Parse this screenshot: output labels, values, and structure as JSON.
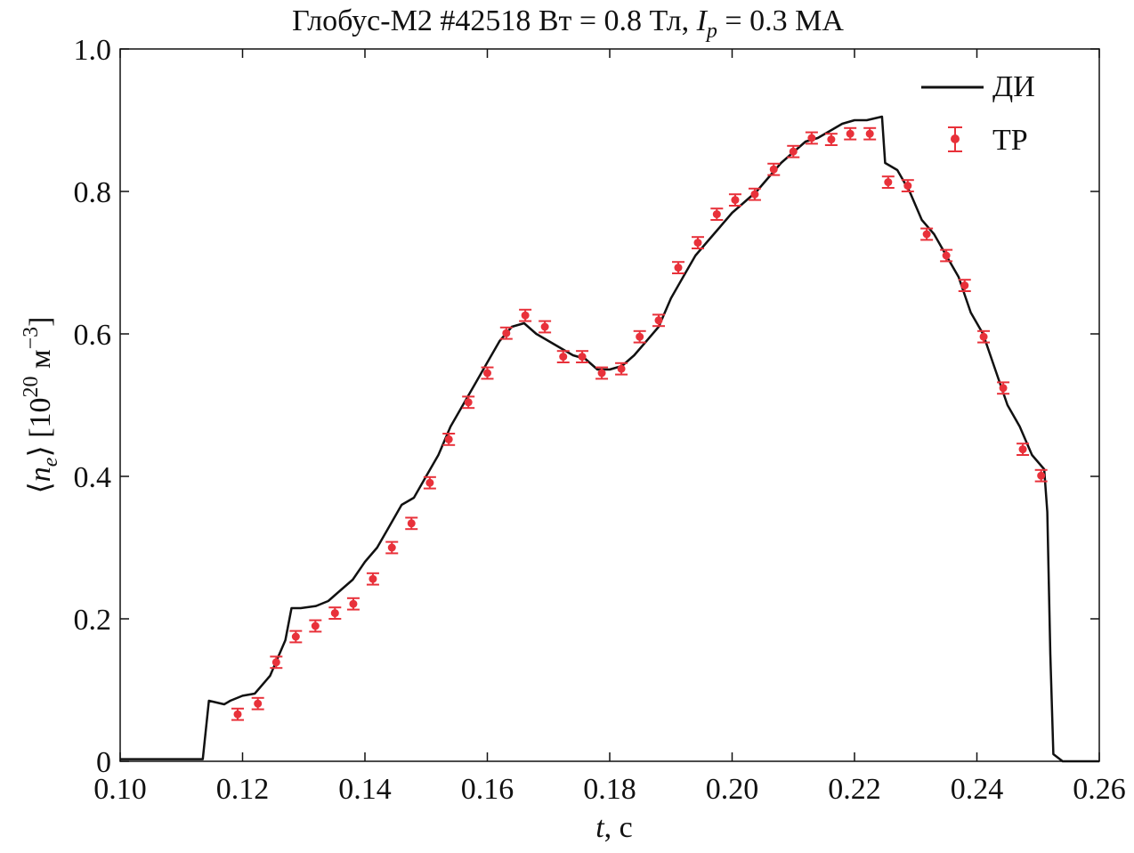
{
  "chart_data": {
    "type": "line",
    "title": {
      "pre": "Глобус-М2 #42518 Bт = 0.8 Тл, ",
      "ip": "I",
      "ip_sub": "p",
      "post": " = 0.3 МА"
    },
    "xlabel": {
      "var": "t",
      "unit": ", с"
    },
    "ylabel": {
      "pre": "⟨",
      "var": "n",
      "sub": "e",
      "post": "⟩ [10",
      "exp": "20",
      "unit": " м",
      "unit_exp": "−3",
      "close": "]"
    },
    "xlim": [
      0.1,
      0.26
    ],
    "ylim": [
      0,
      1.0
    ],
    "xticks": [
      "0.10",
      "0.12",
      "0.14",
      "0.16",
      "0.18",
      "0.20",
      "0.22",
      "0.24",
      "0.26"
    ],
    "yticks": [
      "0",
      "0.2",
      "0.4",
      "0.6",
      "0.8",
      "1.0"
    ],
    "legend": {
      "position": "top-right",
      "entries": [
        "ДИ",
        "ТР"
      ]
    },
    "colors": {
      "di": "#111111",
      "tr": "#e8313a"
    },
    "series": [
      {
        "name": "ДИ",
        "style": "line",
        "x": [
          0.1,
          0.1135,
          0.1145,
          0.117,
          0.118,
          0.12,
          0.122,
          0.1245,
          0.127,
          0.128,
          0.1295,
          0.132,
          0.134,
          0.136,
          0.138,
          0.14,
          0.142,
          0.144,
          0.146,
          0.148,
          0.15,
          0.152,
          0.154,
          0.156,
          0.158,
          0.16,
          0.162,
          0.164,
          0.166,
          0.168,
          0.17,
          0.172,
          0.174,
          0.176,
          0.178,
          0.18,
          0.182,
          0.184,
          0.186,
          0.188,
          0.19,
          0.192,
          0.194,
          0.196,
          0.198,
          0.2,
          0.202,
          0.204,
          0.206,
          0.208,
          0.21,
          0.212,
          0.214,
          0.216,
          0.218,
          0.22,
          0.222,
          0.2245,
          0.225,
          0.227,
          0.229,
          0.231,
          0.233,
          0.235,
          0.237,
          0.239,
          0.241,
          0.243,
          0.245,
          0.247,
          0.249,
          0.251,
          0.2515,
          0.252,
          0.2525,
          0.254,
          0.26
        ],
        "y": [
          0.003,
          0.003,
          0.085,
          0.08,
          0.085,
          0.092,
          0.095,
          0.12,
          0.17,
          0.215,
          0.215,
          0.218,
          0.225,
          0.24,
          0.255,
          0.28,
          0.3,
          0.33,
          0.36,
          0.37,
          0.4,
          0.43,
          0.47,
          0.5,
          0.53,
          0.56,
          0.59,
          0.61,
          0.615,
          0.6,
          0.59,
          0.58,
          0.57,
          0.565,
          0.55,
          0.55,
          0.555,
          0.57,
          0.59,
          0.61,
          0.65,
          0.68,
          0.71,
          0.73,
          0.75,
          0.77,
          0.785,
          0.8,
          0.82,
          0.84,
          0.855,
          0.87,
          0.875,
          0.885,
          0.895,
          0.9,
          0.9,
          0.905,
          0.84,
          0.83,
          0.8,
          0.76,
          0.74,
          0.71,
          0.68,
          0.63,
          0.6,
          0.55,
          0.5,
          0.47,
          0.43,
          0.41,
          0.35,
          0.15,
          0.01,
          0.0,
          0.0
        ]
      },
      {
        "name": "ТР",
        "style": "errorbar",
        "x": [
          0.1192,
          0.1225,
          0.1255,
          0.1287,
          0.1319,
          0.1351,
          0.1381,
          0.1413,
          0.1444,
          0.1476,
          0.1506,
          0.1537,
          0.1569,
          0.16,
          0.1631,
          0.1662,
          0.1694,
          0.1724,
          0.1755,
          0.1787,
          0.1819,
          0.1849,
          0.188,
          0.1912,
          0.1944,
          0.1975,
          0.2005,
          0.2037,
          0.2068,
          0.21,
          0.213,
          0.2162,
          0.2193,
          0.2225,
          0.2255,
          0.2287,
          0.2318,
          0.235,
          0.238,
          0.2411,
          0.2443,
          0.2475,
          0.2505
        ],
        "y": [
          0.066,
          0.081,
          0.139,
          0.175,
          0.19,
          0.208,
          0.221,
          0.256,
          0.3,
          0.334,
          0.391,
          0.452,
          0.504,
          0.545,
          0.601,
          0.626,
          0.61,
          0.568,
          0.568,
          0.545,
          0.551,
          0.596,
          0.619,
          0.693,
          0.728,
          0.768,
          0.788,
          0.796,
          0.831,
          0.856,
          0.875,
          0.873,
          0.881,
          0.881,
          0.813,
          0.808,
          0.74,
          0.71,
          0.668,
          0.596,
          0.524,
          0.438,
          0.401
        ],
        "err": 0.008
      }
    ]
  }
}
